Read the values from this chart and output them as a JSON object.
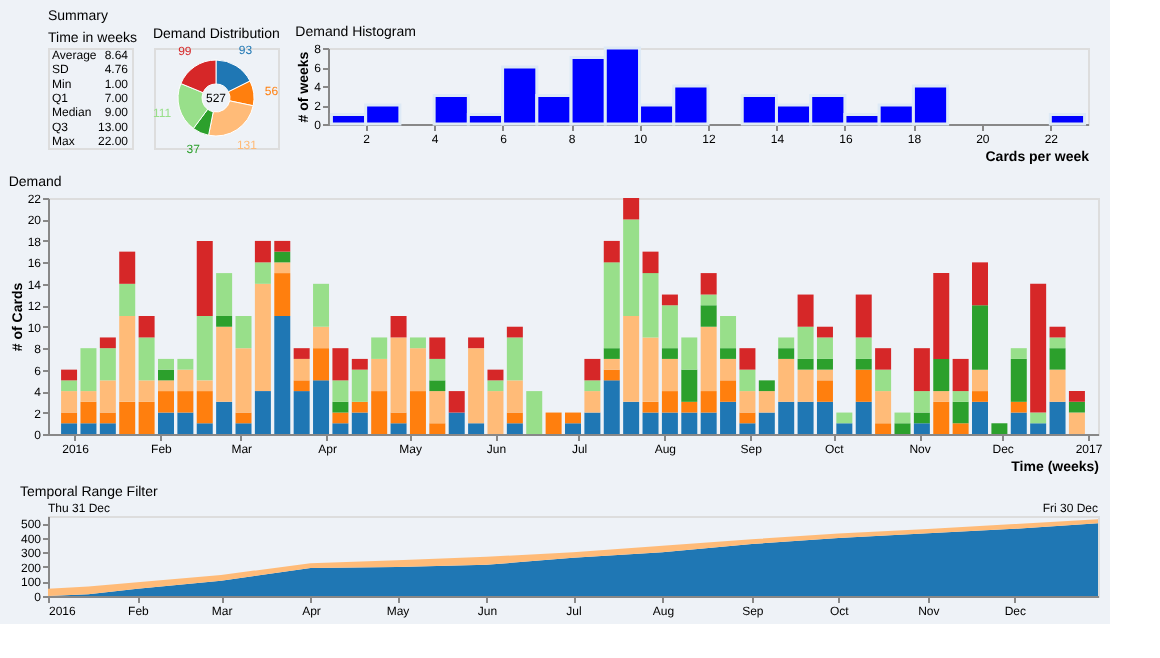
{
  "chart_data": [
    {
      "type": "other",
      "title": "Summary",
      "subtitle": "Time in weeks",
      "categories": [
        "Average",
        "SD",
        "Min",
        "Q1",
        "Median",
        "Q3",
        "Max"
      ],
      "values": [
        8.64,
        4.76,
        1.0,
        7.0,
        9.0,
        13.0,
        22.0
      ],
      "value_labels": [
        "8.64",
        "4.76",
        "1.00",
        "7.00",
        "9.00",
        "13.00",
        "22.00"
      ],
      "data_labels": true
    },
    {
      "type": "donut",
      "title": "Demand Distribution",
      "categories": [
        null,
        null,
        null,
        null,
        null,
        null
      ],
      "values": [
        93,
        56,
        131,
        37,
        111,
        99
      ],
      "colors": [
        "#1f77b4",
        "#ff7f0e",
        "#ffbb78",
        "#2ca02c",
        "#98df8a",
        "#d62728"
      ],
      "data_labels": true,
      "annotations": [
        "527"
      ]
    },
    {
      "type": "histogram",
      "title": "Demand Histogram",
      "xlabel": "Cards per week",
      "ylabel": "# of weeks",
      "bins": [
        1,
        2,
        3,
        4,
        5,
        6,
        7,
        8,
        9,
        10,
        11,
        12,
        13,
        14,
        15,
        16,
        17,
        18,
        19,
        20,
        21,
        22,
        23
      ],
      "values": [
        1,
        2,
        0,
        3,
        1,
        6,
        3,
        7,
        8,
        2,
        4,
        0,
        3,
        2,
        3,
        1,
        2,
        4,
        0,
        0,
        0,
        1
      ],
      "color": "#0000ff",
      "xlim": [
        0.9,
        23.1
      ],
      "xticks": [
        2,
        4,
        6,
        8,
        10,
        12,
        14,
        16,
        18,
        20,
        22
      ],
      "ylim": [
        0,
        8
      ],
      "yticks": [
        0,
        2,
        4,
        6,
        8
      ]
    },
    {
      "type": "bar",
      "stacked": true,
      "title": "Demand",
      "xlabel": "Time (weeks)",
      "ylabel": "# of Cards",
      "x": [
        "2015-12-30",
        "2016-01-06",
        "2016-01-13",
        "2016-01-20",
        "2016-01-27",
        "2016-02-03",
        "2016-02-10",
        "2016-02-17",
        "2016-02-24",
        "2016-03-02",
        "2016-03-09",
        "2016-03-16",
        "2016-03-23",
        "2016-03-30",
        "2016-04-06",
        "2016-04-13",
        "2016-04-20",
        "2016-04-27",
        "2016-05-04",
        "2016-05-11",
        "2016-05-18",
        "2016-05-25",
        "2016-06-01",
        "2016-06-08",
        "2016-06-15",
        "2016-06-22",
        "2016-06-29",
        "2016-07-06",
        "2016-07-13",
        "2016-07-20",
        "2016-07-27",
        "2016-08-03",
        "2016-08-10",
        "2016-08-17",
        "2016-08-24",
        "2016-08-31",
        "2016-09-07",
        "2016-09-14",
        "2016-09-21",
        "2016-09-28",
        "2016-10-05",
        "2016-10-12",
        "2016-10-19",
        "2016-10-26",
        "2016-11-02",
        "2016-11-09",
        "2016-11-16",
        "2016-11-23",
        "2016-11-30",
        "2016-12-07",
        "2016-12-14",
        "2016-12-21",
        "2016-12-28"
      ],
      "series": [
        {
          "color": "#1f77b4",
          "values": [
            1,
            1,
            1,
            0,
            0,
            2,
            2,
            1,
            3,
            1,
            4,
            11,
            4,
            5,
            1,
            2,
            0,
            1,
            0,
            0,
            2,
            1,
            0,
            1,
            0,
            0,
            1,
            2,
            5,
            3,
            2,
            2,
            2,
            2,
            3,
            1,
            2,
            3,
            3,
            3,
            1,
            3,
            0,
            0,
            1,
            0,
            0,
            3,
            0,
            2,
            1,
            3,
            0
          ]
        },
        {
          "color": "#ff7f0e",
          "values": [
            1,
            2,
            1,
            3,
            3,
            2,
            2,
            3,
            0,
            1,
            0,
            4,
            1,
            3,
            1,
            1,
            4,
            1,
            4,
            1,
            0,
            0,
            0,
            1,
            0,
            2,
            1,
            0,
            1,
            0,
            1,
            2,
            1,
            2,
            2,
            1,
            0,
            0,
            0,
            2,
            0,
            3,
            1,
            0,
            0,
            3,
            1,
            1,
            0,
            1,
            0,
            0,
            0
          ]
        },
        {
          "color": "#ffbb78",
          "values": [
            2,
            1,
            3,
            8,
            2,
            1,
            2,
            1,
            7,
            6,
            10,
            1,
            2,
            2,
            0,
            0,
            3,
            7,
            4,
            3,
            0,
            7,
            4,
            3,
            0,
            0,
            0,
            2,
            1,
            8,
            6,
            3,
            0,
            6,
            2,
            2,
            2,
            4,
            3,
            1,
            0,
            0,
            3,
            0,
            0,
            1,
            0,
            2,
            0,
            0,
            0,
            3,
            2
          ]
        },
        {
          "color": "#2ca02c",
          "values": [
            0,
            0,
            0,
            0,
            0,
            1,
            0,
            0,
            1,
            0,
            0,
            1,
            0,
            0,
            1,
            0,
            0,
            0,
            0,
            1,
            0,
            0,
            0,
            0,
            0,
            0,
            0,
            0,
            1,
            0,
            0,
            1,
            3,
            2,
            1,
            0,
            1,
            1,
            1,
            1,
            0,
            1,
            0,
            1,
            1,
            3,
            2,
            6,
            1,
            4,
            0,
            2,
            1
          ]
        },
        {
          "color": "#98df8a",
          "values": [
            1,
            4,
            3,
            3,
            4,
            1,
            1,
            6,
            4,
            3,
            2,
            0,
            0,
            4,
            2,
            3,
            2,
            0,
            1,
            2,
            0,
            0,
            1,
            4,
            4,
            0,
            0,
            1,
            8,
            9,
            6,
            4,
            3,
            1,
            3,
            2,
            0,
            1,
            3,
            2,
            1,
            2,
            2,
            1,
            2,
            0,
            1,
            0,
            0,
            1,
            1,
            1,
            0
          ]
        },
        {
          "color": "#d62728",
          "values": [
            1,
            0,
            1,
            3,
            2,
            0,
            0,
            7,
            0,
            0,
            2,
            1,
            1,
            0,
            3,
            1,
            0,
            2,
            0,
            2,
            2,
            1,
            1,
            1,
            0,
            0,
            0,
            2,
            2,
            2,
            2,
            1,
            0,
            2,
            0,
            2,
            0,
            0,
            3,
            1,
            0,
            4,
            2,
            0,
            4,
            8,
            3,
            4,
            0,
            0,
            12,
            1,
            1
          ]
        }
      ],
      "xlim": [
        "2015-12-26",
        "2017-01-01"
      ],
      "xticks": [
        {
          "value": "2016-01-01",
          "label": "2016"
        },
        {
          "value": "2016-02-01",
          "label": "Feb"
        },
        {
          "value": "2016-03-01",
          "label": "Mar"
        },
        {
          "value": "2016-04-01",
          "label": "Apr"
        },
        {
          "value": "2016-05-01",
          "label": "May"
        },
        {
          "value": "2016-06-01",
          "label": "Jun"
        },
        {
          "value": "2016-07-01",
          "label": "Jul"
        },
        {
          "value": "2016-08-01",
          "label": "Aug"
        },
        {
          "value": "2016-09-01",
          "label": "Sep"
        },
        {
          "value": "2016-10-01",
          "label": "Oct"
        },
        {
          "value": "2016-11-01",
          "label": "Nov"
        },
        {
          "value": "2016-12-01",
          "label": "Dec"
        },
        {
          "value": "2017-01-01",
          "label": "2017"
        }
      ],
      "ylim": [
        0,
        22
      ],
      "yticks": [
        0,
        2,
        4,
        6,
        8,
        10,
        12,
        14,
        16,
        18,
        20,
        22
      ]
    },
    {
      "type": "area",
      "stacked": true,
      "title": "Temporal Range Filter",
      "annotations": [
        "Thu 31 Dec",
        "Fri 30 Dec"
      ],
      "x": [
        "2016-01-01",
        "2016-01-15",
        "2016-02-01",
        "2016-03-01",
        "2016-04-01",
        "2016-05-01",
        "2016-06-01",
        "2016-07-01",
        "2016-08-01",
        "2016-09-01",
        "2016-10-01",
        "2016-11-01",
        "2016-12-01",
        "2016-12-30"
      ],
      "series": [
        {
          "color": "#1f77b4",
          "values": [
            0,
            12,
            49,
            105,
            192,
            200,
            214,
            263,
            300,
            357,
            398,
            432,
            462,
            500
          ]
        },
        {
          "color": "#ffbb78",
          "values": [
            50,
            53,
            46,
            40,
            33,
            45,
            56,
            37,
            45,
            33,
            32,
            28,
            33,
            27
          ]
        }
      ],
      "xlim": [
        "2016-01-01",
        "2016-12-30"
      ],
      "xticks": [
        {
          "value": "2016-01-01",
          "label": "2016"
        },
        {
          "value": "2016-02-01",
          "label": "Feb"
        },
        {
          "value": "2016-03-01",
          "label": "Mar"
        },
        {
          "value": "2016-04-01",
          "label": "Apr"
        },
        {
          "value": "2016-05-01",
          "label": "May"
        },
        {
          "value": "2016-06-01",
          "label": "Jun"
        },
        {
          "value": "2016-07-01",
          "label": "Jul"
        },
        {
          "value": "2016-08-01",
          "label": "Aug"
        },
        {
          "value": "2016-09-01",
          "label": "Sep"
        },
        {
          "value": "2016-10-01",
          "label": "Oct"
        },
        {
          "value": "2016-11-01",
          "label": "Nov"
        },
        {
          "value": "2016-12-01",
          "label": "Dec"
        }
      ],
      "ylim": [
        0,
        550
      ],
      "yticks": [
        0,
        100,
        200,
        300,
        400,
        500
      ]
    }
  ]
}
